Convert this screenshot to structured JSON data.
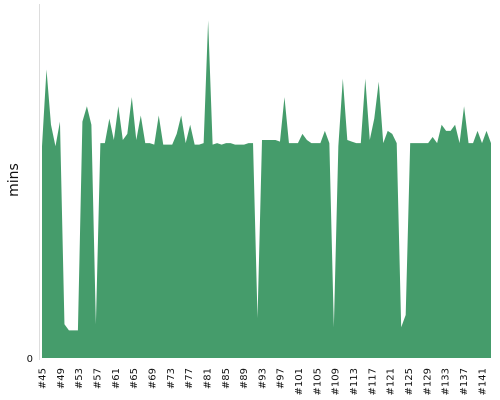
{
  "chart_data": {
    "type": "area",
    "title": "",
    "xlabel": "",
    "ylabel": "mins",
    "fill_color": "#459c6b",
    "axis_color": "#dddddd",
    "grid": false,
    "legend": "none",
    "ylim": [
      0,
      11.5
    ],
    "y_ticks": [
      "0"
    ],
    "x_ticks": [
      "#45",
      "#49",
      "#53",
      "#57",
      "#61",
      "#65",
      "#69",
      "#73",
      "#77",
      "#81",
      "#85",
      "#89",
      "#93",
      "#97",
      "#101",
      "#105",
      "#109",
      "#113",
      "#117",
      "#121",
      "#125",
      "#129",
      "#133",
      "#137",
      "#141"
    ],
    "x_start": 45,
    "x_end": 143,
    "values": [
      6.9,
      9.4,
      7.6,
      6.9,
      7.7,
      1.1,
      0.9,
      0.9,
      0.9,
      7.7,
      8.2,
      7.6,
      1.1,
      7.0,
      7.0,
      7.8,
      7.1,
      8.2,
      7.1,
      7.3,
      8.5,
      7.1,
      7.9,
      7.0,
      7.0,
      6.95,
      7.9,
      6.95,
      6.95,
      6.95,
      7.3,
      7.9,
      7.0,
      7.6,
      6.95,
      6.95,
      7.0,
      11.0,
      6.95,
      7.0,
      6.95,
      7.0,
      7.0,
      6.95,
      6.95,
      6.95,
      7.0,
      7.0,
      1.3,
      7.1,
      7.1,
      7.1,
      7.1,
      7.05,
      8.5,
      7.0,
      7.0,
      7.0,
      7.3,
      7.1,
      7.0,
      7.0,
      7.0,
      7.4,
      7.0,
      1.0,
      6.9,
      9.1,
      7.1,
      7.05,
      7.0,
      7.0,
      9.1,
      7.1,
      7.8,
      9.0,
      7.0,
      7.4,
      7.3,
      7.0,
      1.0,
      1.4,
      7.0,
      7.0,
      7.0,
      7.0,
      7.0,
      7.2,
      7.0,
      7.6,
      7.4,
      7.4,
      7.6,
      7.0,
      8.2,
      7.0,
      7.0,
      7.4,
      7.0,
      7.4,
      7.0
    ]
  }
}
